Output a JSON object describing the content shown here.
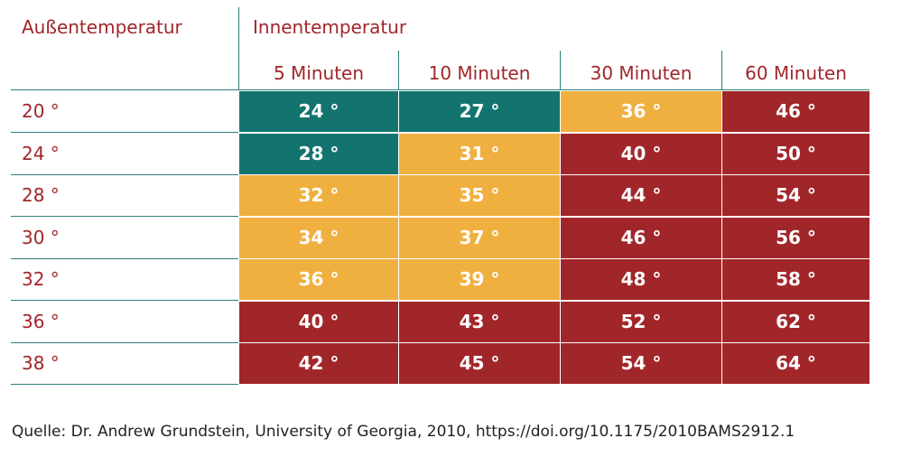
{
  "chart_data": {
    "type": "table",
    "row_header": "Außentemperatur",
    "column_group_header": "Innentemperatur",
    "columns": [
      "5 Minuten",
      "10 Minuten",
      "30 Minuten",
      "60 Minuten"
    ],
    "rows": [
      {
        "label": "20 °",
        "cells": [
          "24 °",
          "27 °",
          "36 °",
          "46 °"
        ],
        "levels": [
          "teal",
          "teal",
          "orange",
          "red"
        ]
      },
      {
        "label": "24 °",
        "cells": [
          "28 °",
          "31 °",
          "40 °",
          "50 °"
        ],
        "levels": [
          "teal",
          "orange",
          "red",
          "red"
        ]
      },
      {
        "label": "28 °",
        "cells": [
          "32 °",
          "35 °",
          "44 °",
          "54 °"
        ],
        "levels": [
          "orange",
          "orange",
          "red",
          "red"
        ]
      },
      {
        "label": "30 °",
        "cells": [
          "34 °",
          "37 °",
          "46 °",
          "56 °"
        ],
        "levels": [
          "orange",
          "orange",
          "red",
          "red"
        ]
      },
      {
        "label": "32 °",
        "cells": [
          "36 °",
          "39 °",
          "48 °",
          "58 °"
        ],
        "levels": [
          "orange",
          "orange",
          "red",
          "red"
        ]
      },
      {
        "label": "36 °",
        "cells": [
          "40 °",
          "43 °",
          "52 °",
          "62 °"
        ],
        "levels": [
          "red",
          "red",
          "red",
          "red"
        ]
      },
      {
        "label": "38 °",
        "cells": [
          "42 °",
          "45 °",
          "54 °",
          "64 °"
        ],
        "levels": [
          "red",
          "red",
          "red",
          "red"
        ]
      }
    ],
    "colors": {
      "teal": "#13746f",
      "orange": "#f0b040",
      "red": "#a1262a"
    },
    "source": "Quelle: Dr. Andrew Grundstein, University of Georgia, 2010, https://doi.org/10.1175/2010BAMS2912.1"
  }
}
